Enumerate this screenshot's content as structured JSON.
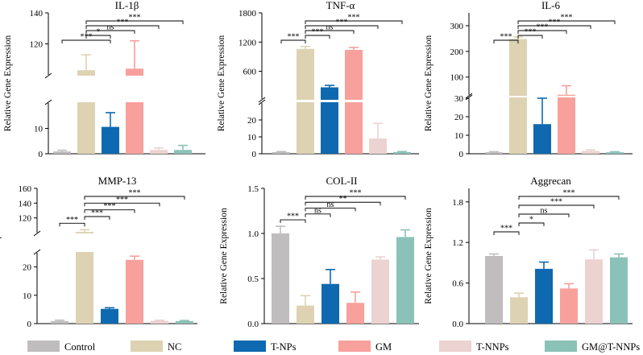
{
  "figure": {
    "groups": [
      "Control",
      "NC",
      "T-NPs",
      "GM",
      "T-NNPs",
      "GM@T-NNPs"
    ],
    "colors": {
      "Control": "#bfbdbd",
      "NC": "#ddd3b2",
      "T-NPs": "#0e69b0",
      "GM": "#f8a09c",
      "T-NNPs": "#ecd2d0",
      "GM@T-NNPs": "#8ac2b8"
    },
    "ylabel": "Relative Gene Expression"
  },
  "chart_data": [
    {
      "type": "bar",
      "title": "IL-1β",
      "ylabel": "Relative Gene Expression",
      "categories": [
        "Control",
        "NC",
        "T-NPs",
        "GM",
        "T-NNPs",
        "GM@T-NNPs"
      ],
      "values": [
        0.9,
        103,
        10.6,
        104,
        1.5,
        1.5
      ],
      "errors": [
        0.5,
        10,
        5.6,
        18,
        0.8,
        1.8
      ],
      "broken_axis": {
        "lower": [
          0,
          20
        ],
        "upper": [
          100,
          140
        ]
      },
      "yticks_lower": [
        0,
        10
      ],
      "yticks_upper": [
        120,
        140
      ],
      "significance": [
        {
          "pair": [
            "Control",
            "T-NPs"
          ],
          "label": "***"
        },
        {
          "pair": [
            "NC",
            "T-NPs"
          ],
          "label": "*"
        },
        {
          "pair": [
            "NC",
            "GM"
          ],
          "label": "ns"
        },
        {
          "pair": [
            "NC",
            "T-NNPs"
          ],
          "label": "***"
        },
        {
          "pair": [
            "NC",
            "GM@T-NNPs"
          ],
          "label": "***"
        }
      ]
    },
    {
      "type": "bar",
      "title": "TNF-α",
      "ylabel": "Relative Gene Expression",
      "categories": [
        "Control",
        "NC",
        "T-NPs",
        "GM",
        "T-NNPs",
        "GM@T-NNPs"
      ],
      "values": [
        1,
        1060,
        270,
        1040,
        9,
        1
      ],
      "errors": [
        0.3,
        50,
        40,
        50,
        9,
        0.3
      ],
      "broken_axis": {
        "lower": [
          0,
          30
        ],
        "upper": [
          30,
          1800
        ]
      },
      "yticks_lower": [
        0,
        10,
        20
      ],
      "yticks_upper": [
        600,
        1200,
        1800
      ],
      "significance": [
        {
          "pair": [
            "Control",
            "NC"
          ],
          "label": "***"
        },
        {
          "pair": [
            "NC",
            "T-NPs"
          ],
          "label": "***"
        },
        {
          "pair": [
            "NC",
            "GM"
          ],
          "label": "ns"
        },
        {
          "pair": [
            "NC",
            "T-NNPs"
          ],
          "label": "***"
        },
        {
          "pair": [
            "NC",
            "GM@T-NNPs"
          ],
          "label": "***"
        }
      ]
    },
    {
      "type": "bar",
      "title": "IL-6",
      "ylabel": "Relative Gene Expression",
      "categories": [
        "Control",
        "NC",
        "T-NPs",
        "GM",
        "T-NNPs",
        "GM@T-NNPs"
      ],
      "values": [
        0.8,
        248,
        16,
        31,
        1.5,
        0.8
      ],
      "errors": [
        0.3,
        8,
        14,
        35,
        0.6,
        0.3
      ],
      "broken_axis": {
        "lower": [
          0,
          30
        ],
        "upper": [
          30,
          350
        ]
      },
      "yticks_lower": [
        0,
        10,
        20,
        30
      ],
      "yticks_upper": [
        100,
        200,
        300
      ],
      "significance": [
        {
          "pair": [
            "Control",
            "NC"
          ],
          "label": "***"
        },
        {
          "pair": [
            "NC",
            "T-NPs"
          ],
          "label": "***"
        },
        {
          "pair": [
            "NC",
            "GM"
          ],
          "label": "***"
        },
        {
          "pair": [
            "NC",
            "T-NNPs"
          ],
          "label": "***"
        },
        {
          "pair": [
            "NC",
            "GM@T-NNPs"
          ],
          "label": "***"
        }
      ]
    },
    {
      "type": "bar",
      "title": "MMP-13",
      "ylabel": "Relative Gene Expression",
      "categories": [
        "Control",
        "NC",
        "T-NPs",
        "GM",
        "T-NNPs",
        "GM@T-NNPs"
      ],
      "values": [
        0.9,
        101,
        5.2,
        22.5,
        1.0,
        0.9
      ],
      "errors": [
        0.3,
        3,
        0.4,
        1.3,
        0.2,
        0.2
      ],
      "broken_axis": {
        "lower": [
          0,
          25
        ],
        "upper": [
          100,
          160
        ]
      },
      "yticks_lower": [
        0,
        10,
        20
      ],
      "yticks_upper": [
        120,
        140,
        160
      ],
      "significance": [
        {
          "pair": [
            "Control",
            "NC"
          ],
          "label": "***"
        },
        {
          "pair": [
            "NC",
            "T-NPs"
          ],
          "label": "***"
        },
        {
          "pair": [
            "NC",
            "GM"
          ],
          "label": "***"
        },
        {
          "pair": [
            "NC",
            "T-NNPs"
          ],
          "label": "***"
        },
        {
          "pair": [
            "NC",
            "GM@T-NNPs"
          ],
          "label": "***"
        }
      ]
    },
    {
      "type": "bar",
      "title": "COL-II",
      "ylabel": "Relative Gene Expression",
      "categories": [
        "Control",
        "NC",
        "T-NPs",
        "GM",
        "T-NNPs",
        "GM@T-NNPs"
      ],
      "values": [
        1.0,
        0.2,
        0.44,
        0.23,
        0.71,
        0.96
      ],
      "errors": [
        0.08,
        0.11,
        0.16,
        0.12,
        0.03,
        0.08
      ],
      "ylim": [
        0,
        1.5
      ],
      "yticks": [
        0.0,
        0.5,
        1.0,
        1.5
      ],
      "significance": [
        {
          "pair": [
            "Control",
            "NC"
          ],
          "label": "***"
        },
        {
          "pair": [
            "NC",
            "T-NPs"
          ],
          "label": "ns"
        },
        {
          "pair": [
            "NC",
            "GM"
          ],
          "label": "ns"
        },
        {
          "pair": [
            "NC",
            "T-NNPs"
          ],
          "label": "**"
        },
        {
          "pair": [
            "NC",
            "GM@T-NNPs"
          ],
          "label": "***"
        }
      ]
    },
    {
      "type": "bar",
      "title": "Aggrecan",
      "ylabel": "Relative Gene Expression",
      "categories": [
        "Control",
        "NC",
        "T-NPs",
        "GM",
        "T-NNPs",
        "GM@T-NNPs"
      ],
      "values": [
        1.0,
        0.39,
        0.81,
        0.52,
        0.95,
        0.98
      ],
      "errors": [
        0.03,
        0.06,
        0.1,
        0.07,
        0.14,
        0.05
      ],
      "ylim": [
        0,
        2.0
      ],
      "yticks": [
        0.0,
        0.6,
        1.2,
        1.8
      ],
      "significance": [
        {
          "pair": [
            "Control",
            "NC"
          ],
          "label": "***"
        },
        {
          "pair": [
            "NC",
            "T-NPs"
          ],
          "label": "*"
        },
        {
          "pair": [
            "NC",
            "GM"
          ],
          "label": "ns"
        },
        {
          "pair": [
            "NC",
            "T-NNPs"
          ],
          "label": "***"
        },
        {
          "pair": [
            "NC",
            "GM@T-NNPs"
          ],
          "label": "***"
        }
      ]
    }
  ]
}
